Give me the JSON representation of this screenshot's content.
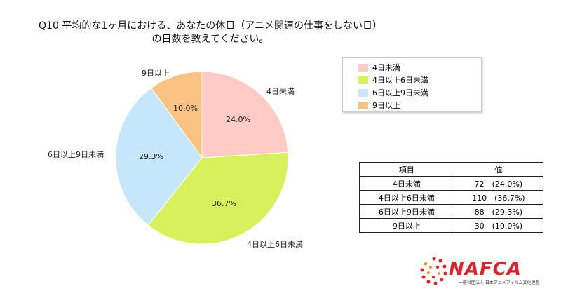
{
  "title_line1": "Q10 平均的な1ヶ月における、あなたの休日（アニメ関連の仕事をしない日）",
  "title_line2": "の日数を教えてください。",
  "chart_data": {
    "type": "pie",
    "categories": [
      "4日未満",
      "4日以上6日未満",
      "6日以上9日未満",
      "9日以上"
    ],
    "values": [
      24.0,
      36.7,
      29.3,
      10.0
    ],
    "data_labels": [
      "24.0%",
      "36.7%",
      "29.3%",
      "10.0%"
    ],
    "colors": [
      "#FFCBC4",
      "#D8F05C",
      "#C6E6FB",
      "#FAC384"
    ],
    "start": "top",
    "direction": "clockwise",
    "legend": "right"
  },
  "table": {
    "headers": [
      "項目",
      "値"
    ],
    "rows": [
      [
        "4日未満",
        "72　(24.0%)"
      ],
      [
        "4日以上6日未満",
        "110　(36.7%)"
      ],
      [
        "6日以上9日未満",
        "88　(29.3%)"
      ],
      [
        "9日以上",
        "30　(10.0%)"
      ]
    ]
  },
  "logo": {
    "name": "NAFCA",
    "subtitle": "一般社団法人 日本アニメフィルム文化連盟",
    "color": "#E0202A"
  }
}
